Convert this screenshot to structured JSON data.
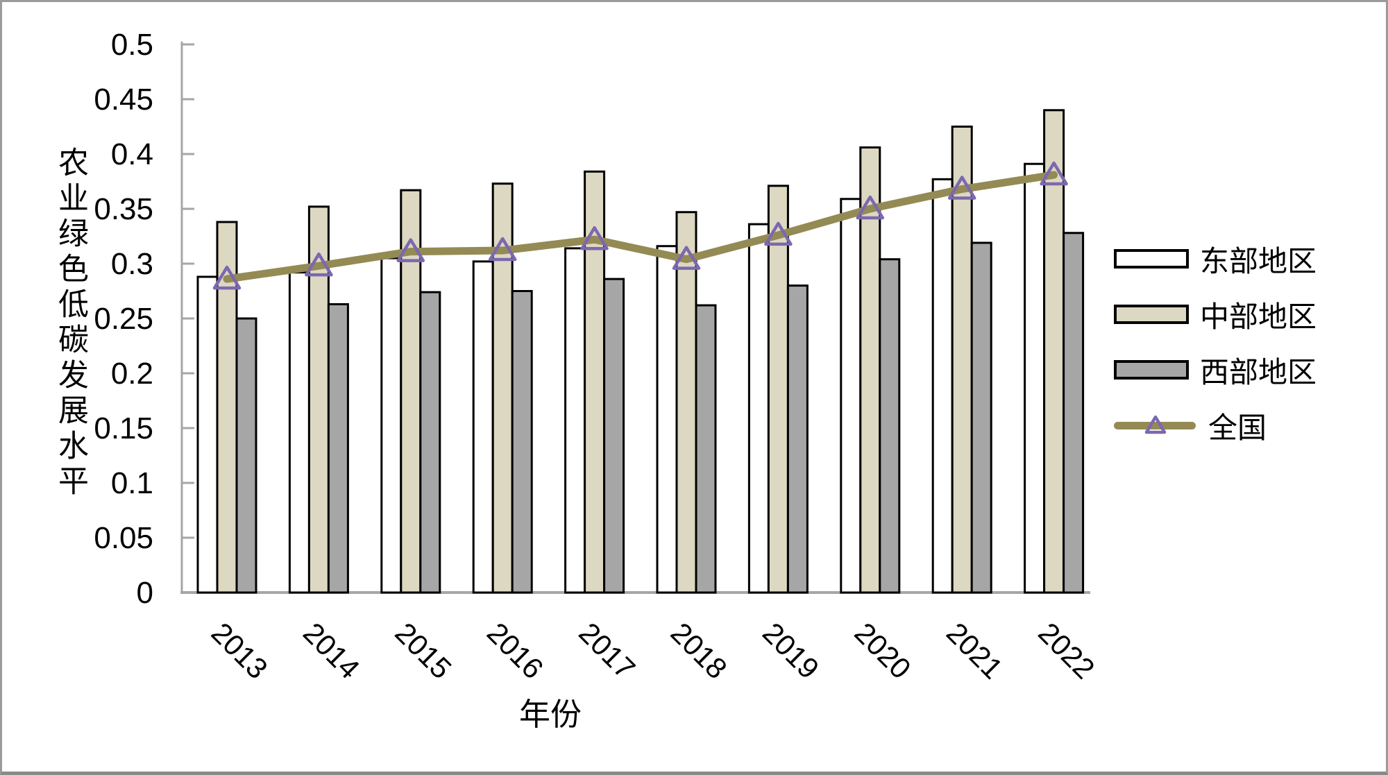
{
  "frame": {
    "background": "#ffffff",
    "border_color": "#9a9a9a"
  },
  "chart_data": {
    "type": "bar",
    "title": "",
    "xlabel": "年份",
    "ylabel": "农业绿色低碳发展水平",
    "categories": [
      "2013",
      "2014",
      "2015",
      "2016",
      "2017",
      "2018",
      "2019",
      "2020",
      "2021",
      "2022"
    ],
    "series": [
      {
        "name": "东部地区",
        "type": "bar",
        "color": "#ffffff",
        "border_color": "#000000",
        "values": [
          0.288,
          0.292,
          0.305,
          0.302,
          0.314,
          0.316,
          0.336,
          0.359,
          0.377,
          0.391
        ]
      },
      {
        "name": "中部地区",
        "type": "bar",
        "color": "#ddd8c2",
        "border_color": "#000000",
        "values": [
          0.338,
          0.352,
          0.367,
          0.373,
          0.384,
          0.347,
          0.371,
          0.406,
          0.425,
          0.44
        ]
      },
      {
        "name": "西部地区",
        "type": "bar",
        "color": "#a6a6a6",
        "border_color": "#000000",
        "values": [
          0.25,
          0.263,
          0.274,
          0.275,
          0.286,
          0.262,
          0.28,
          0.304,
          0.319,
          0.328
        ]
      },
      {
        "name": "全国",
        "type": "line",
        "color": "#948a54",
        "marker": "hollow-triangle",
        "marker_color": "#7c68ae",
        "values": [
          0.286,
          0.298,
          0.311,
          0.312,
          0.322,
          0.304,
          0.326,
          0.35,
          0.368,
          0.381
        ]
      }
    ],
    "ylim": [
      0,
      0.5
    ],
    "ytick_step": 0.05,
    "ytick_labels": [
      "0",
      "0.05",
      "0.1",
      "0.15",
      "0.2",
      "0.25",
      "0.3",
      "0.35",
      "0.4",
      "0.45",
      "0.5"
    ],
    "grid": false,
    "legend_position": "right",
    "axis_color": "#a6a6a6"
  }
}
